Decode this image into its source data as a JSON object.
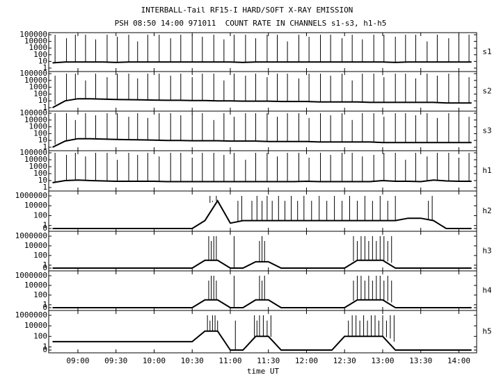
{
  "chart_data": {
    "type": "line",
    "title": "INTERBALL-Tail RF15-I HARD/SOFT X-RAY EMISSION",
    "subtitle": "PSH 08:50 14:00 971011  COUNT RATE IN CHANNELS s1-s3, h1-h5",
    "xlabel": "time UT",
    "xlim": [
      "08:37",
      "14:14"
    ],
    "xticks": [
      "09:00",
      "09:30",
      "10:00",
      "10:30",
      "11:00",
      "11:30",
      "12:00",
      "12:30",
      "13:00",
      "13:30",
      "14:00"
    ],
    "x": [
      "08:40",
      "08:50",
      "09:00",
      "09:10",
      "09:20",
      "09:30",
      "09:40",
      "09:50",
      "10:00",
      "10:10",
      "10:20",
      "10:30",
      "10:40",
      "10:50",
      "11:00",
      "11:10",
      "11:20",
      "11:30",
      "11:40",
      "11:50",
      "12:00",
      "12:10",
      "12:20",
      "12:30",
      "12:40",
      "12:50",
      "13:00",
      "13:10",
      "13:20",
      "13:30",
      "13:40",
      "13:50",
      "14:00",
      "14:10"
    ],
    "yscale": "log",
    "color": "#000000",
    "series": [
      {
        "name": "s1",
        "ylim": [
          1,
          100000
        ],
        "yticks": [
          100000,
          10000,
          1000,
          100,
          10,
          1
        ],
        "values": [
          6,
          8,
          8,
          8,
          8,
          7,
          8,
          8,
          8,
          8,
          8,
          8,
          8,
          8,
          8,
          7,
          8,
          8,
          8,
          8,
          8,
          8,
          8,
          8,
          8,
          8,
          8,
          7,
          8,
          8,
          8,
          8,
          8,
          8
        ],
        "spikes_x": [
          "08:42",
          "08:51",
          "08:58",
          "09:06",
          "09:14",
          "09:23",
          "09:31",
          "09:40",
          "09:47",
          "09:55",
          "10:04",
          "10:13",
          "10:21",
          "10:30",
          "10:38",
          "10:47",
          "10:55",
          "11:03",
          "11:12",
          "11:20",
          "11:29",
          "11:37",
          "11:45",
          "11:54",
          "12:02",
          "12:11",
          "12:19",
          "12:28",
          "12:36",
          "12:44",
          "12:53",
          "13:01",
          "13:10",
          "13:18",
          "13:26",
          "13:35",
          "13:43",
          "13:52",
          "14:00",
          "14:08"
        ],
        "spikes": [
          100000,
          30000,
          100000,
          100000,
          20000,
          100000,
          50000,
          100000,
          10000,
          100000,
          100000,
          30000,
          100000,
          100000,
          50000,
          100000,
          20000,
          100000,
          100000,
          30000,
          100000,
          100000,
          10000,
          100000,
          50000,
          100000,
          100000,
          30000,
          100000,
          20000,
          100000,
          100000,
          50000,
          100000,
          100000,
          10000,
          100000,
          30000,
          100000,
          100000
        ]
      },
      {
        "name": "s2",
        "ylim": [
          1,
          100000
        ],
        "yticks": [
          100000,
          10000,
          1000,
          100,
          10,
          1
        ],
        "values": [
          1,
          10,
          20,
          20,
          18,
          16,
          15,
          14,
          13,
          12,
          12,
          11,
          11,
          10,
          10,
          9,
          9,
          9,
          8,
          8,
          8,
          7,
          7,
          7,
          7,
          6,
          6,
          6,
          6,
          6,
          6,
          5,
          5,
          5
        ],
        "spikes_x": [
          "08:42",
          "08:51",
          "08:58",
          "09:06",
          "09:14",
          "09:23",
          "09:31",
          "09:40",
          "09:47",
          "09:55",
          "10:04",
          "10:13",
          "10:21",
          "10:30",
          "10:38",
          "10:47",
          "10:55",
          "11:03",
          "11:12",
          "11:20",
          "11:29",
          "11:37",
          "11:45",
          "11:54",
          "12:02",
          "12:11",
          "12:19",
          "12:28",
          "12:36",
          "12:44",
          "12:53",
          "13:01",
          "13:10",
          "13:18",
          "13:26",
          "13:35",
          "13:43",
          "13:52",
          "14:00",
          "14:08"
        ],
        "spikes": [
          50000,
          100000,
          100000,
          10000,
          100000,
          30000,
          100000,
          100000,
          20000,
          100000,
          100000,
          50000,
          100000,
          30000,
          100000,
          100000,
          10000,
          100000,
          50000,
          100000,
          30000,
          100000,
          100000,
          20000,
          100000,
          100000,
          50000,
          100000,
          10000,
          100000,
          100000,
          30000,
          100000,
          100000,
          20000,
          100000,
          50000,
          100000,
          100000,
          30000
        ]
      },
      {
        "name": "s3",
        "ylim": [
          1,
          100000
        ],
        "yticks": [
          100000,
          10000,
          1000,
          100,
          10,
          1
        ],
        "values": [
          1,
          8,
          18,
          18,
          16,
          14,
          13,
          12,
          11,
          10,
          10,
          9,
          9,
          9,
          8,
          8,
          8,
          7,
          7,
          7,
          7,
          6,
          6,
          6,
          6,
          6,
          5,
          5,
          5,
          5,
          5,
          5,
          5,
          5
        ],
        "spikes_x": [
          "08:42",
          "08:51",
          "08:58",
          "09:06",
          "09:14",
          "09:23",
          "09:31",
          "09:40",
          "09:47",
          "09:55",
          "10:04",
          "10:13",
          "10:21",
          "10:30",
          "10:38",
          "10:47",
          "10:55",
          "11:03",
          "11:12",
          "11:20",
          "11:29",
          "11:37",
          "11:45",
          "11:54",
          "12:02",
          "12:11",
          "12:19",
          "12:28",
          "12:36",
          "12:44",
          "12:53",
          "13:01",
          "13:10",
          "13:18",
          "13:26",
          "13:35",
          "13:43",
          "13:52",
          "14:00",
          "14:08"
        ],
        "spikes": [
          100000,
          100000,
          10000,
          100000,
          50000,
          100000,
          100000,
          30000,
          100000,
          20000,
          100000,
          100000,
          50000,
          100000,
          100000,
          10000,
          100000,
          30000,
          100000,
          100000,
          100000,
          30000,
          100000,
          100000,
          20000,
          100000,
          50000,
          100000,
          10000,
          100000,
          100000,
          30000,
          100000,
          100000,
          50000,
          100000,
          20000,
          100000,
          100000,
          30000
        ]
      },
      {
        "name": "h1",
        "ylim": [
          1,
          100000
        ],
        "yticks": [
          100000,
          10000,
          1000,
          100,
          10,
          1
        ],
        "values": [
          5,
          10,
          12,
          10,
          9,
          8,
          8,
          8,
          8,
          7,
          7,
          7,
          7,
          7,
          7,
          7,
          7,
          7,
          7,
          7,
          8,
          7,
          7,
          7,
          7,
          7,
          10,
          8,
          8,
          7,
          12,
          9,
          8,
          8
        ],
        "spikes_x": [
          "08:42",
          "08:51",
          "08:58",
          "09:06",
          "09:14",
          "09:23",
          "09:31",
          "09:40",
          "09:47",
          "09:55",
          "10:04",
          "10:13",
          "10:21",
          "10:30",
          "10:38",
          "10:47",
          "10:55",
          "11:03",
          "11:12",
          "11:20",
          "11:29",
          "11:37",
          "11:45",
          "11:54",
          "12:02",
          "12:11",
          "12:19",
          "12:28",
          "12:36",
          "12:44",
          "12:53",
          "13:01",
          "13:10",
          "13:18",
          "13:26",
          "13:35",
          "13:43",
          "13:52",
          "14:00",
          "14:08"
        ],
        "spikes": [
          100000,
          50000,
          100000,
          30000,
          100000,
          100000,
          10000,
          100000,
          50000,
          100000,
          30000,
          100000,
          100000,
          20000,
          100000,
          100000,
          50000,
          100000,
          10000,
          100000,
          100000,
          30000,
          100000,
          100000,
          20000,
          100000,
          50000,
          100000,
          100000,
          30000,
          50000,
          100000,
          100000,
          10000,
          100000,
          30000,
          100000,
          100000,
          20000,
          100000
        ]
      },
      {
        "name": "h2",
        "ylim": [
          0,
          1000000
        ],
        "yticks": [
          1000000,
          10000,
          100,
          1,
          0
        ],
        "values": [
          0,
          0,
          0,
          0,
          0,
          0,
          0,
          0,
          0,
          0,
          0,
          0,
          10,
          100000,
          3,
          10,
          10,
          10,
          10,
          10,
          10,
          10,
          10,
          10,
          10,
          10,
          10,
          10,
          30,
          30,
          10,
          0,
          0,
          0
        ],
        "spikes_x": [
          "10:44",
          "10:46",
          "10:49",
          "11:06",
          "11:09",
          "11:17",
          "11:21",
          "11:25",
          "11:29",
          "11:33",
          "11:38",
          "11:43",
          "11:48",
          "11:53",
          "11:58",
          "12:04",
          "12:10",
          "12:16",
          "12:22",
          "12:28",
          "12:34",
          "12:40",
          "12:46",
          "12:52",
          "12:58",
          "13:04",
          "13:10",
          "13:36",
          "13:39"
        ],
        "spikes": [
          1000000,
          100000,
          1000000,
          100000,
          1000000,
          100000,
          1000000,
          100000,
          1000000,
          100000,
          1000000,
          100000,
          1000000,
          100000,
          1000000,
          100000,
          1000000,
          100000,
          1000000,
          100000,
          1000000,
          100000,
          1000000,
          100000,
          1000000,
          100000,
          1000000,
          100000,
          1000000
        ]
      },
      {
        "name": "h3",
        "ylim": [
          0,
          1000000
        ],
        "yticks": [
          1000000,
          10000,
          100,
          1,
          0
        ],
        "values": [
          0,
          0,
          0,
          0,
          0,
          0,
          0,
          0,
          0,
          0,
          0,
          0,
          10,
          10,
          0,
          0,
          5,
          5,
          0,
          0,
          0,
          0,
          0,
          0,
          10,
          10,
          10,
          0,
          0,
          0,
          0,
          0,
          0,
          0
        ],
        "spikes_x": [
          "10:43",
          "10:45",
          "10:47",
          "10:49",
          "11:03",
          "11:23",
          "11:25",
          "11:27",
          "12:37",
          "12:40",
          "12:43",
          "12:46",
          "12:49",
          "12:52",
          "12:55",
          "12:58",
          "13:01",
          "13:04",
          "13:07"
        ],
        "spikes": [
          1000000,
          100000,
          1000000,
          1000000,
          1000000,
          100000,
          1000000,
          100000,
          1000000,
          100000,
          1000000,
          1000000,
          100000,
          1000000,
          100000,
          1000000,
          1000000,
          100000,
          1000000
        ]
      },
      {
        "name": "h4",
        "ylim": [
          0,
          1000000
        ],
        "yticks": [
          1000000,
          10000,
          100,
          1,
          0
        ],
        "values": [
          0,
          0,
          0,
          0,
          0,
          0,
          0,
          0,
          0,
          0,
          0,
          0,
          10,
          10,
          0,
          0,
          10,
          10,
          0,
          0,
          0,
          0,
          0,
          0,
          10,
          10,
          10,
          0,
          0,
          0,
          0,
          0,
          0,
          0
        ],
        "spikes_x": [
          "10:43",
          "10:45",
          "10:47",
          "10:49",
          "11:03",
          "11:23",
          "11:25",
          "11:27",
          "12:37",
          "12:40",
          "12:43",
          "12:46",
          "12:49",
          "12:52",
          "12:55",
          "12:58",
          "13:01",
          "13:04",
          "13:07"
        ],
        "spikes": [
          100000,
          1000000,
          1000000,
          100000,
          1000000,
          1000000,
          100000,
          1000000,
          100000,
          1000000,
          1000000,
          100000,
          1000000,
          100000,
          1000000,
          1000000,
          100000,
          1000000,
          100000
        ]
      },
      {
        "name": "h5",
        "ylim": [
          0,
          1000000
        ],
        "yticks": [
          1000000,
          10000,
          100,
          1,
          0
        ],
        "values": [
          10,
          10,
          10,
          10,
          10,
          10,
          10,
          10,
          10,
          10,
          10,
          10,
          1000,
          1000,
          0,
          0,
          100,
          100,
          0,
          0,
          0,
          0,
          0,
          100,
          100,
          100,
          100,
          0,
          0,
          0,
          0,
          0,
          0,
          0
        ],
        "spikes_x": [
          "10:42",
          "10:44",
          "10:46",
          "10:48",
          "10:50",
          "11:04",
          "11:19",
          "11:21",
          "11:23",
          "11:26",
          "11:29",
          "11:32",
          "12:33",
          "12:36",
          "12:39",
          "12:42",
          "12:45",
          "12:48",
          "12:51",
          "12:54",
          "12:57",
          "13:00",
          "13:03",
          "13:06",
          "13:09"
        ],
        "spikes": [
          1000000,
          100000,
          1000000,
          1000000,
          100000,
          100000,
          1000000,
          100000,
          1000000,
          1000000,
          100000,
          1000000,
          100000,
          1000000,
          1000000,
          100000,
          1000000,
          100000,
          1000000,
          1000000,
          100000,
          1000000,
          100000,
          1000000,
          1000000
        ]
      }
    ]
  }
}
